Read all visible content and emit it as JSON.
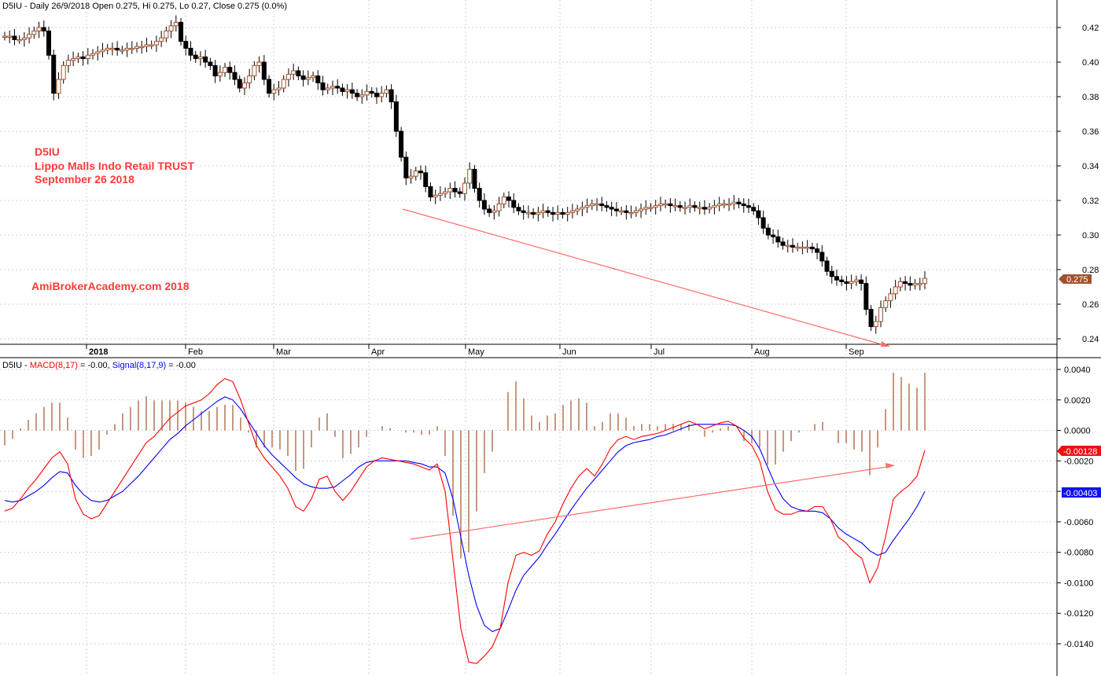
{
  "header_price": {
    "symbol": "D5IU",
    "text": " - Daily 26/9/2018 Open 0.275, Hi 0.275, Lo 0.27, Close 0.275 (0.0%)"
  },
  "header_macd": {
    "symbol": "D5IU",
    "sep1": " - ",
    "macd_label": "MACD(8,17)",
    "macd_value": " = -0.00, ",
    "signal_label": "Signal(8,17,9)",
    "signal_value": " = -0.00"
  },
  "annotations": {
    "line1": "D5IU",
    "line2": "Lippo Malls Indo Retail TRUST",
    "line3": "September 26 2018",
    "site": "AmiBrokerAcademy.com  2018"
  },
  "colors": {
    "up_candle": "#a0522d",
    "down_candle": "#000000",
    "macd": "#ff0000",
    "signal": "#0000ff",
    "histogram": "#a0522d",
    "annotation": "#ff3b3b",
    "grid": "#c8c8c8"
  },
  "chart_data": [
    {
      "type": "candlestick",
      "title": "",
      "x_tick_labels": [
        "2018",
        "Feb",
        "Mar",
        "Apr",
        "May",
        "Jun",
        "Jul",
        "Aug",
        "Sep"
      ],
      "y_tick_labels": [
        "0.42",
        "0.40",
        "0.38",
        "0.36",
        "0.34",
        "0.32",
        "0.30",
        "0.28",
        "0.26",
        "0.24"
      ],
      "ylim": [
        0.235,
        0.425
      ],
      "grid": true,
      "last_close": "0.275",
      "close_path": [
        [
          0.415,
          0.415,
          0.413,
          0.413,
          0.414,
          0.416,
          0.418,
          0.42,
          0.418,
          0.404,
          0.382,
          0.39,
          0.398,
          0.401,
          0.402,
          0.403,
          0.402,
          0.404,
          0.405,
          0.406,
          0.407,
          0.408,
          0.408,
          0.407,
          0.407,
          0.408,
          0.408,
          0.409,
          0.409,
          0.41,
          0.41,
          0.412,
          0.414,
          0.418,
          0.421,
          0.423,
          0.412,
          0.408,
          0.404,
          0.402,
          0.403,
          0.4,
          0.398,
          0.392,
          0.394,
          0.397,
          0.394,
          0.39,
          0.385,
          0.388,
          0.392,
          0.398,
          0.4,
          0.39,
          0.382,
          0.384,
          0.385,
          0.39,
          0.393,
          0.395,
          0.392,
          0.39,
          0.391,
          0.392,
          0.388,
          0.384,
          0.385,
          0.386,
          0.385,
          0.383,
          0.384,
          0.382,
          0.38,
          0.381,
          0.383,
          0.382,
          0.38,
          0.382,
          0.384,
          0.377,
          0.36,
          0.345,
          0.333,
          0.334,
          0.337,
          0.336,
          0.328,
          0.322,
          0.323,
          0.324,
          0.325,
          0.327,
          0.325,
          0.324,
          0.33,
          0.338,
          0.327,
          0.32,
          0.315,
          0.313,
          0.314,
          0.318,
          0.322,
          0.32,
          0.316,
          0.314,
          0.313,
          0.313,
          0.312,
          0.313,
          0.314,
          0.313,
          0.312,
          0.313,
          0.312,
          0.313,
          0.314,
          0.315,
          0.316,
          0.317,
          0.318,
          0.318,
          0.317,
          0.316,
          0.315,
          0.314,
          0.314,
          0.313,
          0.313,
          0.314,
          0.315,
          0.316,
          0.316,
          0.317,
          0.318,
          0.318,
          0.317,
          0.317,
          0.316,
          0.316,
          0.317,
          0.316,
          0.316,
          0.315,
          0.316,
          0.317,
          0.318,
          0.318,
          0.318,
          0.319,
          0.318,
          0.317,
          0.316,
          0.314,
          0.31,
          0.304,
          0.3,
          0.299,
          0.296,
          0.294,
          0.294,
          0.293,
          0.293,
          0.293,
          0.293,
          0.292,
          0.29,
          0.285,
          0.279,
          0.276,
          0.274,
          0.273,
          0.272,
          0.273,
          0.274,
          0.272,
          0.257,
          0.247,
          0.25,
          0.258,
          0.262,
          0.266,
          0.27,
          0.273,
          0.272,
          0.271,
          0.272,
          0.272,
          0.275
        ]
      ]
    },
    {
      "type": "line",
      "title": "",
      "y_tick_labels": [
        "0.0040",
        "0.0020",
        "0.0000",
        "-0.0020",
        "-0.0040",
        "-0.0060",
        "-0.0080",
        "-0.0100",
        "-0.0120",
        "-0.0140"
      ],
      "ylim": [
        -0.0155,
        0.0045
      ],
      "grid": true,
      "macd_tag": "-0.00128",
      "signal_tag": "-0.00403",
      "series": [
        {
          "name": "MACD(8,17)",
          "values": [
            -0.0053,
            -0.0051,
            -0.0045,
            -0.0038,
            -0.0032,
            -0.0025,
            -0.0018,
            -0.0014,
            -0.0022,
            -0.0045,
            -0.0055,
            -0.0058,
            -0.0056,
            -0.0048,
            -0.004,
            -0.0032,
            -0.0024,
            -0.0016,
            -0.0008,
            -0.0004,
            0.0002,
            0.0008,
            0.0012,
            0.0016,
            0.0018,
            0.002,
            0.0024,
            0.003,
            0.0034,
            0.0032,
            0.002,
            0.0005,
            -0.001,
            -0.0018,
            -0.0024,
            -0.003,
            -0.0038,
            -0.005,
            -0.0053,
            -0.0045,
            -0.0032,
            -0.003,
            -0.004,
            -0.0046,
            -0.004,
            -0.0032,
            -0.0024,
            -0.002,
            -0.0018,
            -0.0019,
            -0.002,
            -0.0021,
            -0.0022,
            -0.0024,
            -0.0026,
            -0.0022,
            -0.004,
            -0.0085,
            -0.013,
            -0.0152,
            -0.0153,
            -0.0148,
            -0.0142,
            -0.013,
            -0.01,
            -0.0082,
            -0.008,
            -0.0082,
            -0.0079,
            -0.0068,
            -0.006,
            -0.0048,
            -0.0038,
            -0.003,
            -0.0025,
            -0.003,
            -0.0022,
            -0.0012,
            -0.0006,
            -0.0004,
            -0.0006,
            -0.0004,
            -0.0003,
            -0.0002,
            0.0,
            0.0002,
            0.0004,
            0.0006,
            0.0004,
            0.0001,
            0.0003,
            0.0005,
            0.0006,
            0.0003,
            -0.0005,
            -0.001,
            -0.002,
            -0.004,
            -0.0052,
            -0.0055,
            -0.0055,
            -0.0053,
            -0.0053,
            -0.005,
            -0.005,
            -0.0058,
            -0.007,
            -0.0074,
            -0.008,
            -0.0084,
            -0.01,
            -0.009,
            -0.007,
            -0.0045,
            -0.004,
            -0.0036,
            -0.003,
            -0.0013
          ]
        },
        {
          "name": "Signal(8,17,9)",
          "values": [
            -0.0046,
            -0.0047,
            -0.0046,
            -0.0043,
            -0.004,
            -0.0036,
            -0.0031,
            -0.0027,
            -0.0028,
            -0.0036,
            -0.0042,
            -0.0046,
            -0.0047,
            -0.0046,
            -0.0043,
            -0.004,
            -0.0035,
            -0.003,
            -0.0024,
            -0.0018,
            -0.0012,
            -0.0006,
            -0.0002,
            0.0003,
            0.0007,
            0.0011,
            0.0015,
            0.0019,
            0.0022,
            0.002,
            0.0014,
            0.0006,
            -0.0002,
            -0.001,
            -0.0016,
            -0.0021,
            -0.0026,
            -0.0031,
            -0.0035,
            -0.0037,
            -0.0038,
            -0.0038,
            -0.0037,
            -0.0033,
            -0.0029,
            -0.0024,
            -0.0021,
            -0.002,
            -0.002,
            -0.002,
            -0.002,
            -0.002,
            -0.0021,
            -0.0022,
            -0.0024,
            -0.0024,
            -0.0028,
            -0.0045,
            -0.007,
            -0.0095,
            -0.0115,
            -0.0128,
            -0.0132,
            -0.013,
            -0.0118,
            -0.0105,
            -0.0095,
            -0.0089,
            -0.0083,
            -0.0075,
            -0.0068,
            -0.006,
            -0.0052,
            -0.0045,
            -0.0038,
            -0.0032,
            -0.0026,
            -0.002,
            -0.0014,
            -0.001,
            -0.0008,
            -0.0007,
            -0.0006,
            -0.0004,
            -0.0003,
            -0.0001,
            0.0001,
            0.0003,
            0.0004,
            0.0004,
            0.0004,
            0.0004,
            0.0004,
            0.0003,
            0.0,
            -0.0004,
            -0.0012,
            -0.0024,
            -0.0036,
            -0.0045,
            -0.005,
            -0.0052,
            -0.0053,
            -0.0053,
            -0.0054,
            -0.0058,
            -0.0064,
            -0.0068,
            -0.0071,
            -0.0074,
            -0.0079,
            -0.0082,
            -0.008,
            -0.0072,
            -0.0065,
            -0.0058,
            -0.005,
            -0.004
          ]
        }
      ]
    }
  ]
}
